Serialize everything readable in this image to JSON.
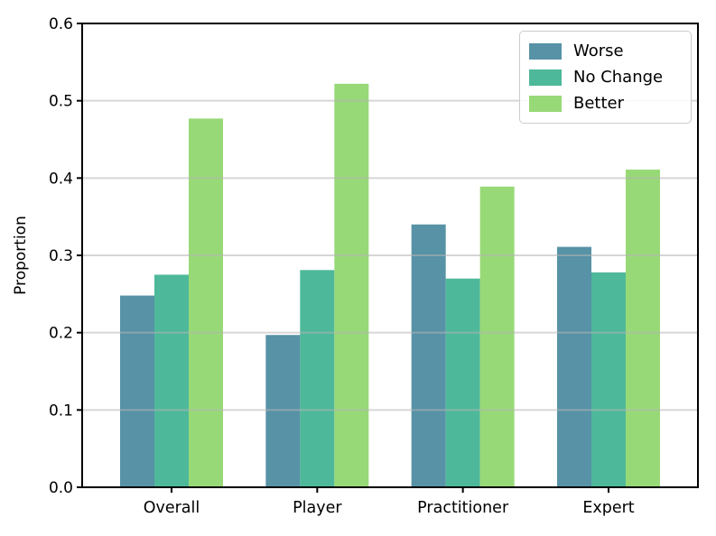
{
  "figure": {
    "background": "#ffffff"
  },
  "chart_data": {
    "type": "bar",
    "title": "",
    "xlabel": "",
    "ylabel": "Proportion",
    "ylim": [
      0,
      0.6
    ],
    "yticks": [
      0.0,
      0.1,
      0.2,
      0.3,
      0.4,
      0.5,
      0.6
    ],
    "ytick_labels": [
      "0.0",
      "0.1",
      "0.2",
      "0.3",
      "0.4",
      "0.5",
      "0.6"
    ],
    "categories": [
      "Overall",
      "Player",
      "Practitioner",
      "Expert"
    ],
    "series": [
      {
        "name": "Worse",
        "color": "#5792a6",
        "values": [
          0.248,
          0.197,
          0.34,
          0.311
        ]
      },
      {
        "name": "No Change",
        "color": "#4eb89a",
        "values": [
          0.275,
          0.281,
          0.27,
          0.278
        ]
      },
      {
        "name": "Better",
        "color": "#98d977",
        "values": [
          0.477,
          0.522,
          0.389,
          0.411
        ]
      }
    ],
    "legend": {
      "position": "upper right",
      "entries": [
        "Worse",
        "No Change",
        "Better"
      ]
    },
    "grid": {
      "axis": "y",
      "color": "#b4b4b4",
      "on_top": true
    },
    "spine_color": "#000000",
    "tick_color": "#000000"
  }
}
